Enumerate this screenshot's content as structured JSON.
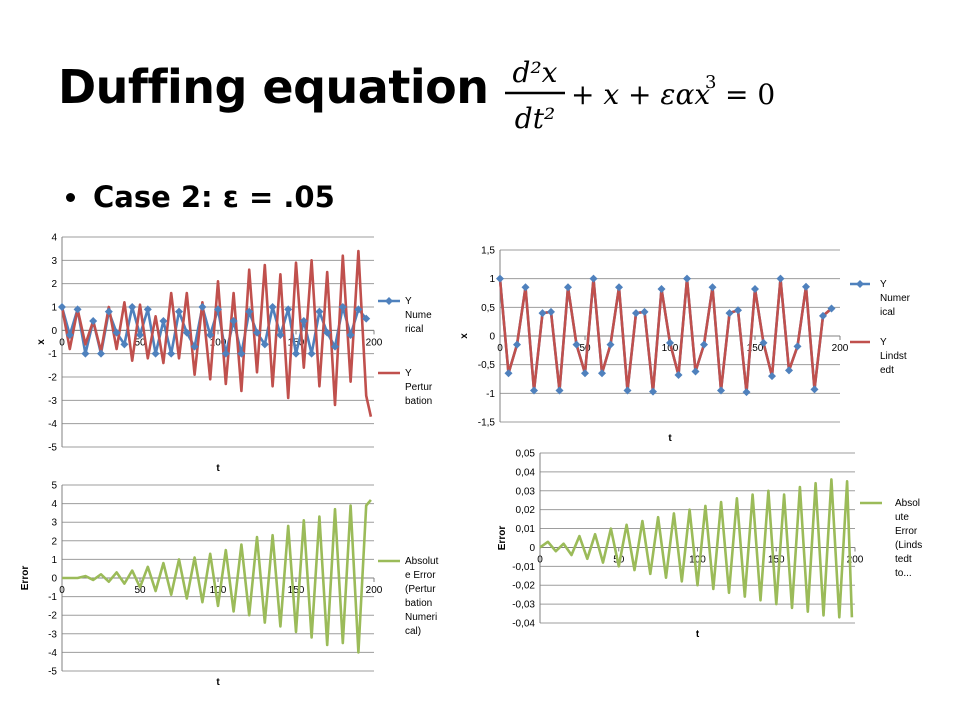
{
  "slide": {
    "title": "Duffing equation",
    "bullet": "Case 2: ε = .05",
    "equation": {
      "d2x": "d²x",
      "dt2": "dt²",
      "rhs_text": "+ x + εαx",
      "power": "3",
      "equals": "= 0"
    }
  },
  "chart_data": [
    {
      "type": "line",
      "title": "",
      "xlabel": "t",
      "ylabel": "x",
      "xlim": [
        0,
        200
      ],
      "ylim": [
        -5,
        4
      ],
      "xticks": [
        "0",
        "50",
        "100",
        "150",
        "200"
      ],
      "yticks": [
        "4",
        "3",
        "2",
        "1",
        "0",
        "-1",
        "-2",
        "-3",
        "-4",
        "-5"
      ],
      "grid": "horizontal",
      "legend": "right",
      "series": [
        {
          "name": "Y Numerical",
          "color": "#4F81BD",
          "marker": "diamond",
          "x": [
            0,
            5,
            10,
            15,
            20,
            25,
            30,
            35,
            40,
            45,
            50,
            55,
            60,
            65,
            70,
            75,
            80,
            85,
            90,
            95,
            100,
            105,
            110,
            115,
            120,
            125,
            130,
            135,
            140,
            145,
            150,
            155,
            160,
            165,
            170,
            175,
            180,
            185,
            190,
            195
          ],
          "y": [
            1,
            -0.2,
            0.9,
            -1,
            0.4,
            -1,
            0.8,
            -0.1,
            -0.6,
            1,
            -0.2,
            0.9,
            -1,
            0.4,
            -1,
            0.8,
            -0.1,
            -0.7,
            1,
            -0.2,
            0.9,
            -1,
            0.4,
            -1,
            0.8,
            -0.1,
            -0.6,
            1,
            -0.2,
            0.9,
            -1,
            0.4,
            -1,
            0.8,
            -0.1,
            -0.7,
            1,
            -0.2,
            0.9,
            0.5
          ]
        },
        {
          "name": "Y Perturbation",
          "color": "#C0504D",
          "marker": "none",
          "x": [
            0,
            5,
            10,
            15,
            20,
            25,
            30,
            35,
            40,
            45,
            50,
            55,
            60,
            65,
            70,
            75,
            80,
            85,
            90,
            95,
            100,
            105,
            110,
            115,
            120,
            125,
            130,
            135,
            140,
            145,
            150,
            155,
            160,
            165,
            170,
            175,
            180,
            185,
            190,
            195,
            198
          ],
          "y": [
            1,
            -0.8,
            0.9,
            -0.6,
            0.4,
            -0.9,
            1,
            -0.8,
            1.2,
            -1.3,
            1.1,
            -1.2,
            0.6,
            -1.4,
            1.6,
            -1.2,
            1.6,
            -1.9,
            1.2,
            -2.1,
            2.1,
            -2.3,
            1.6,
            -2.6,
            2.6,
            -1.8,
            2.8,
            -2.4,
            2.4,
            -2.9,
            2.9,
            -1.6,
            3,
            -2.4,
            2.5,
            -3.2,
            3.2,
            -2.2,
            3.4,
            -2.8,
            -3.7
          ]
        }
      ]
    },
    {
      "type": "line",
      "title": "",
      "xlabel": "t",
      "ylabel": "x",
      "xlim": [
        0,
        200
      ],
      "ylim": [
        -1.5,
        1.5
      ],
      "xticks": [
        "0",
        "50",
        "100",
        "150",
        "200"
      ],
      "yticks": [
        "1,5",
        "1",
        "0,5",
        "0",
        "-0,5",
        "-1",
        "-1,5"
      ],
      "grid": "horizontal",
      "legend": "right",
      "series": [
        {
          "name": "Y Numerical",
          "color": "#4F81BD",
          "marker": "diamond",
          "x": [
            0,
            5,
            10,
            15,
            20,
            25,
            30,
            35,
            40,
            45,
            50,
            55,
            60,
            65,
            70,
            75,
            80,
            85,
            90,
            95,
            100,
            105,
            110,
            115,
            120,
            125,
            130,
            135,
            140,
            145,
            150,
            155,
            160,
            165,
            170,
            175,
            180,
            185,
            190,
            195
          ],
          "y": [
            1,
            -0.65,
            -0.15,
            0.85,
            -0.95,
            0.4,
            0.42,
            -0.95,
            0.85,
            -0.15,
            -0.65,
            1,
            -0.65,
            -0.15,
            0.85,
            -0.95,
            0.4,
            0.42,
            -0.97,
            0.82,
            -0.12,
            -0.68,
            1,
            -0.62,
            -0.15,
            0.85,
            -0.95,
            0.4,
            0.45,
            -0.98,
            0.82,
            -0.12,
            -0.7,
            1,
            -0.6,
            -0.18,
            0.86,
            -0.93,
            0.35,
            0.48
          ]
        },
        {
          "name": "Y Lindstedt",
          "color": "#C0504D",
          "marker": "none",
          "x": [
            0,
            5,
            10,
            15,
            20,
            25,
            30,
            35,
            40,
            45,
            50,
            55,
            60,
            65,
            70,
            75,
            80,
            85,
            90,
            95,
            100,
            105,
            110,
            115,
            120,
            125,
            130,
            135,
            140,
            145,
            150,
            155,
            160,
            165,
            170,
            175,
            180,
            185,
            190,
            195
          ],
          "y": [
            1,
            -0.65,
            -0.15,
            0.85,
            -0.95,
            0.4,
            0.42,
            -0.95,
            0.85,
            -0.15,
            -0.65,
            1,
            -0.65,
            -0.15,
            0.85,
            -0.95,
            0.4,
            0.42,
            -0.97,
            0.82,
            -0.12,
            -0.68,
            1,
            -0.62,
            -0.15,
            0.85,
            -0.95,
            0.4,
            0.45,
            -0.98,
            0.82,
            -0.12,
            -0.7,
            1,
            -0.6,
            -0.18,
            0.86,
            -0.93,
            0.35,
            0.48
          ]
        }
      ]
    },
    {
      "type": "line",
      "title": "",
      "xlabel": "t",
      "ylabel": "Error",
      "xlim": [
        0,
        200
      ],
      "ylim": [
        -5,
        5
      ],
      "xticks": [
        "0",
        "50",
        "100",
        "150",
        "200"
      ],
      "yticks": [
        "5",
        "4",
        "3",
        "2",
        "1",
        "0",
        "-1",
        "-2",
        "-3",
        "-4",
        "-5"
      ],
      "grid": "horizontal",
      "legend": "right",
      "series": [
        {
          "name": "Absolute Error (Perturbation Numerical)",
          "color": "#9BBB59",
          "marker": "none",
          "x": [
            0,
            10,
            15,
            20,
            25,
            30,
            35,
            40,
            45,
            50,
            55,
            60,
            65,
            70,
            75,
            80,
            85,
            90,
            95,
            100,
            105,
            110,
            115,
            120,
            125,
            130,
            135,
            140,
            145,
            150,
            155,
            160,
            165,
            170,
            175,
            180,
            185,
            190,
            195,
            198
          ],
          "y": [
            0,
            0,
            0.1,
            -0.1,
            0.2,
            -0.2,
            0.3,
            -0.3,
            0.4,
            -0.5,
            0.6,
            -0.7,
            0.8,
            -0.9,
            1,
            -1.1,
            1.1,
            -1.3,
            1.3,
            -1.5,
            1.5,
            -1.8,
            1.8,
            -2,
            2.2,
            -2.4,
            2.3,
            -2.6,
            2.8,
            -2.9,
            3.1,
            -3.2,
            3.3,
            -3.6,
            3.7,
            -3.5,
            3.9,
            -4,
            3.9,
            4.2
          ]
        }
      ]
    },
    {
      "type": "line",
      "title": "",
      "xlabel": "t",
      "ylabel": "Error",
      "xlim": [
        0,
        200
      ],
      "ylim": [
        -0.04,
        0.05
      ],
      "xticks": [
        "0",
        "50",
        "100",
        "150",
        "200"
      ],
      "yticks": [
        "0,05",
        "0,04",
        "0,03",
        "0,02",
        "0,01",
        "0",
        "-0,01",
        "-0,02",
        "-0,03",
        "-0,04"
      ],
      "grid": "horizontal",
      "legend": "right",
      "series": [
        {
          "name": "Absolute Error (Lindstedt to...",
          "color": "#9BBB59",
          "marker": "none",
          "x": [
            0,
            5,
            10,
            15,
            20,
            25,
            30,
            35,
            40,
            45,
            50,
            55,
            60,
            65,
            70,
            75,
            80,
            85,
            90,
            95,
            100,
            105,
            110,
            115,
            120,
            125,
            130,
            135,
            140,
            145,
            150,
            155,
            160,
            165,
            170,
            175,
            180,
            185,
            190,
            195,
            198
          ],
          "y": [
            0,
            0.003,
            -0.002,
            0.002,
            -0.004,
            0.006,
            -0.006,
            0.007,
            -0.008,
            0.01,
            -0.01,
            0.012,
            -0.012,
            0.014,
            -0.014,
            0.016,
            -0.016,
            0.018,
            -0.018,
            0.02,
            -0.02,
            0.022,
            -0.022,
            0.024,
            -0.024,
            0.026,
            -0.026,
            0.028,
            -0.028,
            0.03,
            -0.03,
            0.028,
            -0.032,
            0.032,
            -0.034,
            0.034,
            -0.036,
            0.036,
            -0.037,
            0.035,
            -0.037
          ]
        }
      ]
    }
  ]
}
